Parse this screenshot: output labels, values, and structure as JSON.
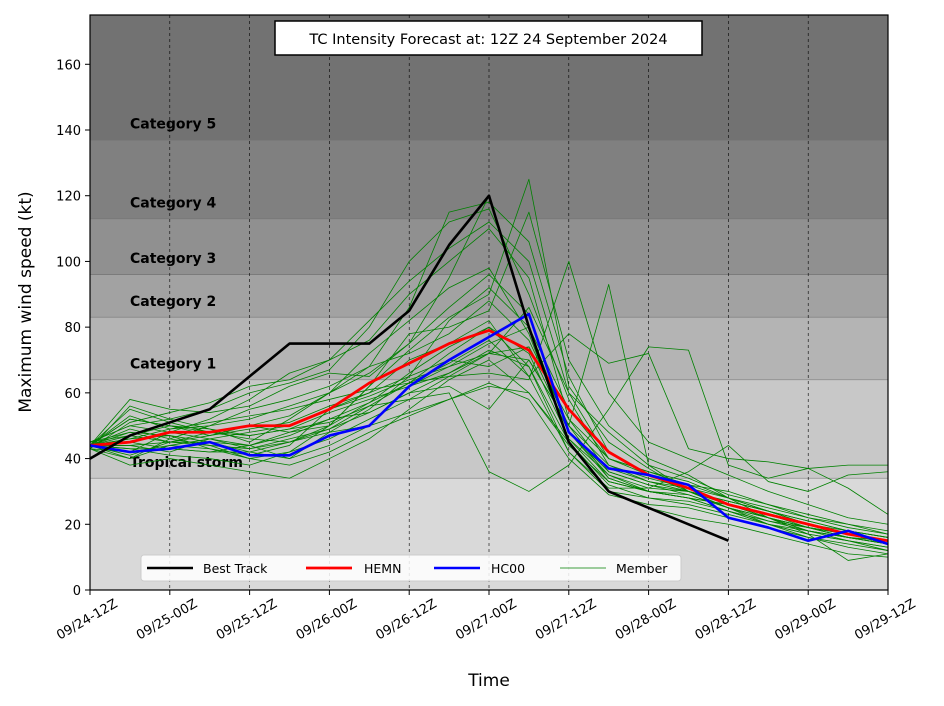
{
  "chart_data": {
    "type": "line",
    "title": "TC Intensity Forecast at: 12Z 24 September 2024",
    "xlabel": "Time",
    "ylabel": "Maximum wind speed (kt)",
    "ylim": [
      0,
      175
    ],
    "yticks": [
      0,
      20,
      40,
      60,
      80,
      100,
      120,
      140,
      160
    ],
    "x_ticks": [
      "09/24-12Z",
      "09/25-00Z",
      "09/25-12Z",
      "09/26-00Z",
      "09/26-12Z",
      "09/27-00Z",
      "09/27-12Z",
      "09/28-00Z",
      "09/28-12Z",
      "09/29-00Z",
      "09/29-12Z"
    ],
    "x_hours": [
      0,
      6,
      12,
      18,
      24,
      30,
      36,
      42,
      48,
      54,
      60,
      66,
      72,
      78,
      84,
      90,
      96,
      102,
      108,
      114,
      120
    ],
    "grid": "vertical dashed at x ticks",
    "legend_position": "lower-center",
    "bands": [
      {
        "label": "Tropical storm",
        "from": 34,
        "to": 64,
        "color": "#c8c8c8"
      },
      {
        "label": "Category 1",
        "from": 64,
        "to": 83,
        "color": "#b4b4b4"
      },
      {
        "label": "Category 2",
        "from": 83,
        "to": 96,
        "color": "#a2a2a2"
      },
      {
        "label": "Category 3",
        "from": 96,
        "to": 113,
        "color": "#909090"
      },
      {
        "label": "Category 4",
        "from": 113,
        "to": 137,
        "color": "#808080"
      },
      {
        "label": "Category 5",
        "from": 137,
        "to": 175,
        "color": "#727272"
      }
    ],
    "below_band_color": "#d9d9d9",
    "series": [
      {
        "name": "Best Track",
        "color": "#000000",
        "width": 2.6,
        "values": [
          40,
          47,
          51,
          55,
          65,
          75,
          75,
          75,
          85,
          105,
          120,
          80,
          45,
          30,
          25,
          20,
          15
        ]
      },
      {
        "name": "HEMN",
        "color": "#ff0000",
        "width": 2.8,
        "values": [
          44,
          45,
          48,
          48,
          50,
          50,
          55,
          63,
          69,
          75,
          79,
          73,
          55,
          42,
          35,
          31,
          26,
          23,
          20,
          17,
          15
        ]
      },
      {
        "name": "HC00",
        "color": "#0000ff",
        "width": 2.6,
        "values": [
          44,
          42,
          43,
          45,
          41,
          41,
          47,
          50,
          62,
          70,
          77,
          84,
          48,
          37,
          35,
          32,
          22,
          19,
          15,
          18,
          14
        ]
      }
    ],
    "members_legend": "Member",
    "members_color": "#008000",
    "members": [
      [
        44,
        58,
        55,
        54,
        56,
        62,
        66,
        65,
        75,
        95,
        120,
        80,
        48,
        35,
        30,
        28,
        24,
        20,
        16,
        14,
        12
      ],
      [
        43,
        56,
        52,
        49,
        45,
        52,
        60,
        68,
        86,
        115,
        118,
        106,
        65,
        42,
        35,
        30,
        25,
        20,
        17,
        15,
        13
      ],
      [
        44,
        52,
        50,
        47,
        50,
        48,
        50,
        62,
        78,
        80,
        85,
        115,
        70,
        50,
        40,
        35,
        28,
        22,
        18,
        16,
        14
      ],
      [
        45,
        48,
        45,
        45,
        42,
        40,
        44,
        50,
        62,
        68,
        72,
        86,
        60,
        48,
        38,
        30,
        25,
        21,
        19,
        16,
        14
      ],
      [
        44,
        40,
        44,
        43,
        40,
        42,
        50,
        62,
        73,
        83,
        90,
        125,
        62,
        45,
        37,
        30,
        27,
        24,
        20,
        17,
        15
      ],
      [
        43,
        38,
        40,
        38,
        36,
        34,
        40,
        46,
        55,
        64,
        70,
        60,
        45,
        30,
        25,
        22,
        20,
        17,
        14,
        11,
        10
      ],
      [
        44,
        44,
        42,
        46,
        44,
        40,
        48,
        55,
        65,
        82,
        92,
        80,
        55,
        40,
        36,
        33,
        28,
        24,
        20,
        18,
        16
      ],
      [
        45,
        50,
        52,
        55,
        60,
        63,
        67,
        80,
        100,
        112,
        116,
        90,
        58,
        38,
        33,
        30,
        26,
        22,
        18,
        16,
        14
      ],
      [
        44,
        42,
        48,
        52,
        58,
        66,
        70,
        76,
        90,
        100,
        110,
        95,
        52,
        36,
        32,
        29,
        25,
        22,
        19,
        17,
        15
      ],
      [
        44,
        46,
        47,
        43,
        41,
        44,
        55,
        60,
        70,
        75,
        82,
        65,
        42,
        30,
        28,
        26,
        23,
        20,
        17,
        15,
        13
      ],
      [
        43,
        40,
        46,
        50,
        55,
        58,
        62,
        68,
        72,
        78,
        88,
        76,
        50,
        34,
        30,
        28,
        24,
        20,
        18,
        16,
        15
      ],
      [
        44,
        55,
        51,
        48,
        46,
        45,
        50,
        57,
        66,
        74,
        80,
        68,
        45,
        32,
        28,
        27,
        24,
        21,
        18,
        15,
        12
      ],
      [
        44,
        43,
        41,
        40,
        38,
        42,
        46,
        52,
        58,
        65,
        72,
        74,
        48,
        36,
        32,
        30,
        27,
        24,
        21,
        18,
        16
      ],
      [
        45,
        47,
        45,
        48,
        50,
        53,
        60,
        72,
        82,
        92,
        98,
        78,
        46,
        33,
        30,
        28,
        26,
        22,
        19,
        17,
        14
      ],
      [
        44,
        49,
        46,
        44,
        40,
        38,
        42,
        48,
        53,
        58,
        63,
        58,
        40,
        29,
        26,
        25,
        22,
        19,
        16,
        13,
        11
      ],
      [
        43,
        51,
        54,
        57,
        62,
        64,
        70,
        82,
        94,
        104,
        112,
        100,
        60,
        40,
        35,
        32,
        28,
        24,
        21,
        18,
        16
      ],
      [
        44,
        45,
        43,
        42,
        44,
        48,
        52,
        54,
        60,
        62,
        55,
        70,
        50,
        38,
        34,
        31,
        28,
        25,
        22,
        19,
        17
      ],
      [
        44,
        41,
        45,
        47,
        49,
        51,
        56,
        60,
        65,
        70,
        68,
        74,
        52,
        40,
        36,
        32,
        30,
        26,
        23,
        20,
        18
      ],
      [
        45,
        50,
        48,
        46,
        43,
        45,
        49,
        56,
        63,
        72,
        80,
        72,
        46,
        35,
        31,
        30,
        27,
        24,
        20,
        17,
        15
      ],
      [
        44,
        53,
        49,
        50,
        52,
        56,
        60,
        66,
        75,
        86,
        96,
        84,
        48,
        37,
        33,
        31,
        26,
        23,
        19,
        16,
        14
      ],
      [
        43,
        42,
        44,
        46,
        48,
        50,
        55,
        59,
        64,
        68,
        75,
        80,
        48,
        34,
        30,
        29,
        25,
        22,
        19,
        17,
        14
      ],
      [
        44,
        47,
        50,
        49,
        47,
        49,
        54,
        58,
        62,
        66,
        72,
        70,
        50,
        93,
        38,
        34,
        29,
        26,
        22,
        20,
        17
      ],
      [
        44,
        46,
        49,
        51,
        53,
        55,
        58,
        61,
        63,
        65,
        66,
        64,
        100,
        60,
        45,
        40,
        35,
        30,
        26,
        22,
        20
      ],
      [
        44,
        52,
        50,
        48,
        47,
        49,
        51,
        56,
        58,
        60,
        36,
        30,
        38,
        55,
        74,
        73,
        38,
        34,
        37,
        31,
        23
      ],
      [
        44,
        48,
        47,
        45,
        44,
        47,
        52,
        57,
        63,
        69,
        76,
        65,
        78,
        69,
        72,
        43,
        40,
        39,
        37,
        38,
        38
      ],
      [
        44,
        44,
        45,
        44,
        43,
        46,
        49,
        54,
        60,
        66,
        73,
        68,
        42,
        31,
        31,
        36,
        44,
        33,
        30,
        35,
        36
      ],
      [
        44,
        43,
        43,
        42,
        42,
        45,
        48,
        50,
        54,
        58,
        62,
        60,
        44,
        33,
        30,
        28,
        26,
        22,
        17,
        9,
        11
      ]
    ]
  }
}
